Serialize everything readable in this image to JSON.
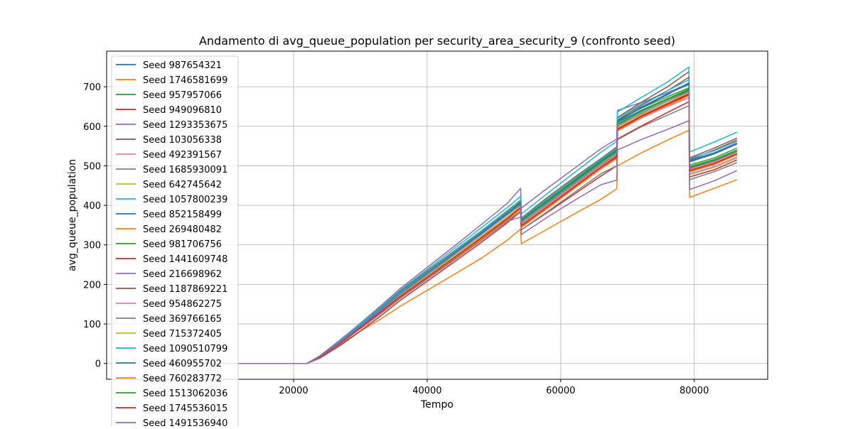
{
  "chart_data": {
    "type": "line",
    "title": "Andamento di avg_queue_population per security_area_security_9 (confronto seed)",
    "xlabel": "Tempo",
    "ylabel": "avg_queue_population",
    "xlim": [
      -8000,
      91000
    ],
    "ylim": [
      -40,
      790
    ],
    "xticks": [
      20000,
      40000,
      60000,
      80000
    ],
    "xtick_labels": [
      "20000",
      "40000",
      "60000",
      "80000"
    ],
    "yticks": [
      0,
      100,
      200,
      300,
      400,
      500,
      600,
      700
    ],
    "ytick_labels": [
      "0",
      "100",
      "200",
      "300",
      "400",
      "500",
      "600",
      "700"
    ],
    "grid": true,
    "legend_position": "top-left",
    "base_x": [
      0,
      22000,
      24000,
      27000,
      30000,
      33000,
      36000,
      40000,
      44000,
      48000,
      52000,
      54000,
      54100,
      58000,
      62000,
      66000,
      68400,
      68500,
      72000,
      76000,
      79200,
      79300,
      83000,
      86400
    ],
    "series": [
      {
        "name": "Seed 987654321",
        "color": "#1f77b4",
        "values": [
          0,
          0,
          18,
          55,
          95,
          135,
          178,
          228,
          278,
          328,
          378,
          404,
          360,
          408,
          458,
          508,
          538,
          610,
          640,
          670,
          692,
          497,
          515,
          540
        ]
      },
      {
        "name": "Seed 1746581699",
        "color": "#ff7f0e",
        "values": [
          0,
          0,
          15,
          48,
          82,
          112,
          145,
          185,
          225,
          265,
          312,
          340,
          303,
          340,
          378,
          415,
          442,
          500,
          532,
          565,
          590,
          420,
          443,
          465
        ]
      },
      {
        "name": "Seed 957957066",
        "color": "#2ca02c",
        "values": [
          0,
          0,
          18,
          56,
          97,
          138,
          181,
          232,
          282,
          332,
          382,
          409,
          365,
          414,
          464,
          514,
          544,
          616,
          645,
          675,
          697,
          502,
          520,
          545
        ]
      },
      {
        "name": "Seed 949096810",
        "color": "#d62728",
        "values": [
          0,
          0,
          14,
          46,
          82,
          120,
          160,
          208,
          256,
          305,
          356,
          384,
          338,
          382,
          428,
          474,
          500,
          568,
          600,
          635,
          662,
          472,
          490,
          515
        ]
      },
      {
        "name": "Seed 1293353675",
        "color": "#9467bd",
        "values": [
          0,
          0,
          20,
          60,
          102,
          145,
          190,
          243,
          296,
          350,
          405,
          443,
          393,
          443,
          493,
          543,
          568,
          640,
          660,
          685,
          708,
          514,
          533,
          558
        ]
      },
      {
        "name": "Seed 103056338",
        "color": "#8c564b",
        "values": [
          0,
          0,
          20,
          58,
          98,
          140,
          183,
          234,
          284,
          334,
          386,
          413,
          368,
          420,
          470,
          518,
          548,
          622,
          660,
          700,
          738,
          520,
          545,
          570
        ]
      },
      {
        "name": "Seed 492391567",
        "color": "#e377c2",
        "values": [
          0,
          0,
          17,
          53,
          92,
          131,
          172,
          221,
          270,
          320,
          370,
          398,
          352,
          400,
          450,
          500,
          526,
          596,
          628,
          660,
          686,
          492,
          510,
          535
        ]
      },
      {
        "name": "Seed 1685930091",
        "color": "#7f7f7f",
        "values": [
          0,
          0,
          17,
          53,
          91,
          130,
          170,
          218,
          266,
          315,
          365,
          392,
          346,
          394,
          444,
          494,
          520,
          588,
          620,
          652,
          678,
          485,
          503,
          528
        ]
      },
      {
        "name": "Seed 642745642",
        "color": "#bcbd22",
        "values": [
          0,
          0,
          18,
          55,
          94,
          134,
          176,
          226,
          276,
          326,
          378,
          406,
          362,
          410,
          460,
          510,
          536,
          604,
          630,
          656,
          672,
          478,
          496,
          520
        ]
      },
      {
        "name": "Seed 1057800239",
        "color": "#17becf",
        "values": [
          0,
          0,
          19,
          58,
          100,
          142,
          186,
          238,
          290,
          342,
          394,
          423,
          378,
          430,
          482,
          534,
          562,
          636,
          672,
          712,
          750,
          535,
          560,
          585
        ]
      },
      {
        "name": "Seed 852158499",
        "color": "#1f77b4",
        "values": [
          0,
          0,
          18,
          55,
          95,
          136,
          179,
          230,
          280,
          330,
          380,
          407,
          362,
          410,
          460,
          510,
          540,
          612,
          648,
          682,
          706,
          510,
          530,
          555
        ]
      },
      {
        "name": "Seed 269480482",
        "color": "#ff7f0e",
        "values": [
          0,
          0,
          17,
          52,
          90,
          128,
          168,
          216,
          264,
          313,
          363,
          390,
          344,
          392,
          442,
          492,
          518,
          588,
          620,
          652,
          678,
          486,
          504,
          528
        ]
      },
      {
        "name": "Seed 981706756",
        "color": "#2ca02c",
        "values": [
          0,
          0,
          18,
          55,
          94,
          134,
          175,
          225,
          275,
          325,
          376,
          404,
          360,
          408,
          458,
          508,
          534,
          604,
          636,
          668,
          690,
          495,
          514,
          538
        ]
      },
      {
        "name": "Seed 1441609748",
        "color": "#d62728",
        "values": [
          0,
          0,
          17,
          53,
          91,
          130,
          170,
          219,
          268,
          318,
          368,
          396,
          350,
          398,
          448,
          498,
          524,
          594,
          626,
          658,
          682,
          488,
          506,
          530
        ]
      },
      {
        "name": "Seed 216698962",
        "color": "#9467bd",
        "values": [
          0,
          0,
          16,
          50,
          88,
          126,
          166,
          214,
          262,
          310,
          360,
          370,
          326,
          370,
          412,
          452,
          464,
          540,
          566,
          592,
          614,
          440,
          462,
          488
        ]
      },
      {
        "name": "Seed 1187869221",
        "color": "#8c564b",
        "values": [
          0,
          0,
          19,
          56,
          96,
          137,
          180,
          231,
          282,
          333,
          384,
          411,
          366,
          416,
          466,
          516,
          544,
          616,
          652,
          690,
          724,
          515,
          540,
          565
        ]
      },
      {
        "name": "Seed 954862275",
        "color": "#e377c2",
        "values": [
          0,
          0,
          17,
          53,
          92,
          131,
          172,
          221,
          270,
          320,
          370,
          397,
          350,
          398,
          448,
          498,
          522,
          590,
          620,
          650,
          672,
          480,
          498,
          522
        ]
      },
      {
        "name": "Seed 369766165",
        "color": "#7f7f7f",
        "values": [
          0,
          0,
          16,
          51,
          88,
          126,
          165,
          213,
          261,
          310,
          360,
          385,
          338,
          384,
          432,
          480,
          500,
          566,
          598,
          628,
          652,
          465,
          485,
          508
        ]
      },
      {
        "name": "Seed 715372405",
        "color": "#bcbd22",
        "values": [
          0,
          0,
          17,
          54,
          93,
          132,
          173,
          222,
          271,
          321,
          371,
          399,
          354,
          402,
          452,
          502,
          528,
          596,
          628,
          660,
          686,
          490,
          508,
          532
        ]
      },
      {
        "name": "Seed 1090510799",
        "color": "#17becf",
        "values": [
          0,
          0,
          18,
          56,
          96,
          137,
          180,
          231,
          282,
          333,
          384,
          412,
          367,
          416,
          466,
          516,
          546,
          620,
          656,
          690,
          718,
          518,
          538,
          562
        ]
      },
      {
        "name": "Seed 460955702",
        "color": "#1f77b4",
        "values": [
          0,
          0,
          18,
          55,
          95,
          135,
          177,
          228,
          278,
          328,
          379,
          407,
          362,
          411,
          461,
          511,
          540,
          612,
          646,
          680,
          710,
          512,
          532,
          556
        ]
      },
      {
        "name": "Seed 760283772",
        "color": "#ff7f0e",
        "values": [
          0,
          0,
          17,
          53,
          91,
          130,
          170,
          218,
          267,
          316,
          366,
          393,
          347,
          395,
          445,
          495,
          520,
          590,
          622,
          654,
          680,
          486,
          504,
          528
        ]
      },
      {
        "name": "Seed 1513062036",
        "color": "#2ca02c",
        "values": [
          0,
          0,
          18,
          55,
          94,
          134,
          176,
          226,
          276,
          326,
          377,
          405,
          360,
          409,
          459,
          509,
          536,
          606,
          638,
          670,
          694,
          498,
          516,
          540
        ]
      },
      {
        "name": "Seed 1745536015",
        "color": "#d62728",
        "values": [
          0,
          0,
          17,
          53,
          91,
          130,
          170,
          218,
          267,
          316,
          366,
          394,
          348,
          396,
          446,
          496,
          522,
          592,
          624,
          656,
          680,
          488,
          506,
          530
        ]
      },
      {
        "name": "Seed 1491536940",
        "color": "#9467bd",
        "values": [
          0,
          0,
          18,
          55,
          94,
          134,
          176,
          226,
          276,
          326,
          376,
          402,
          356,
          404,
          454,
          504,
          530,
          600,
          632,
          664,
          688,
          493,
          512,
          536
        ]
      }
    ]
  }
}
